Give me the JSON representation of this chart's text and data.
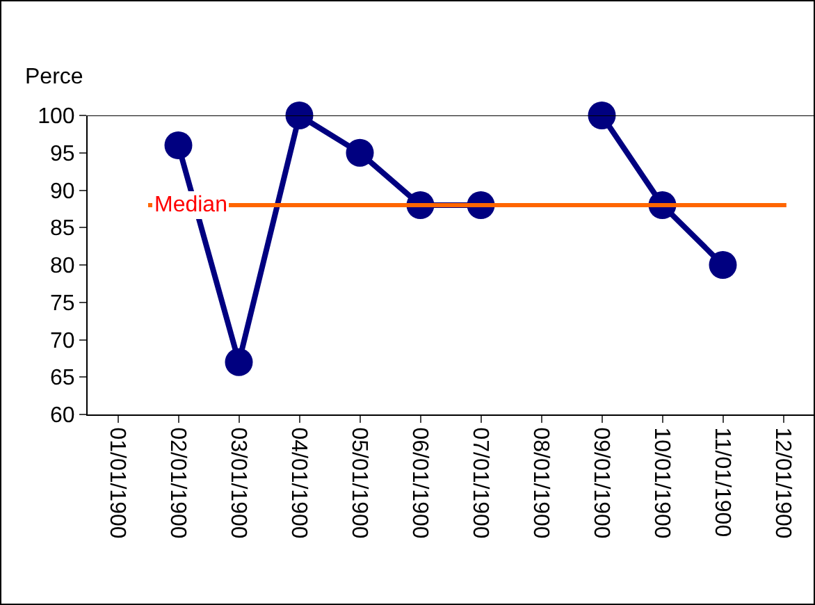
{
  "chart_data": {
    "type": "line",
    "ylabel": "Perce",
    "categories": [
      "01/01/1900",
      "02/01/1900",
      "03/01/1900",
      "04/01/1900",
      "05/01/1900",
      "06/01/1900",
      "07/01/1900",
      "08/01/1900",
      "09/01/1900",
      "10/01/1900",
      "11/01/1900",
      "12/01/1900"
    ],
    "series": [
      {
        "color": "#000080",
        "values": [
          null,
          96,
          67,
          100,
          95,
          88,
          88,
          null,
          100,
          88,
          80,
          null
        ]
      }
    ],
    "ylim": [
      60,
      100
    ],
    "yticks": [
      60,
      65,
      70,
      75,
      80,
      85,
      90,
      95,
      100
    ],
    "ref_lines": [
      {
        "axis": "y",
        "value": 88,
        "label": "Median",
        "color": "#ff6600"
      }
    ],
    "marker": "circle",
    "line_style": "solid",
    "grid": false,
    "legend": false
  }
}
